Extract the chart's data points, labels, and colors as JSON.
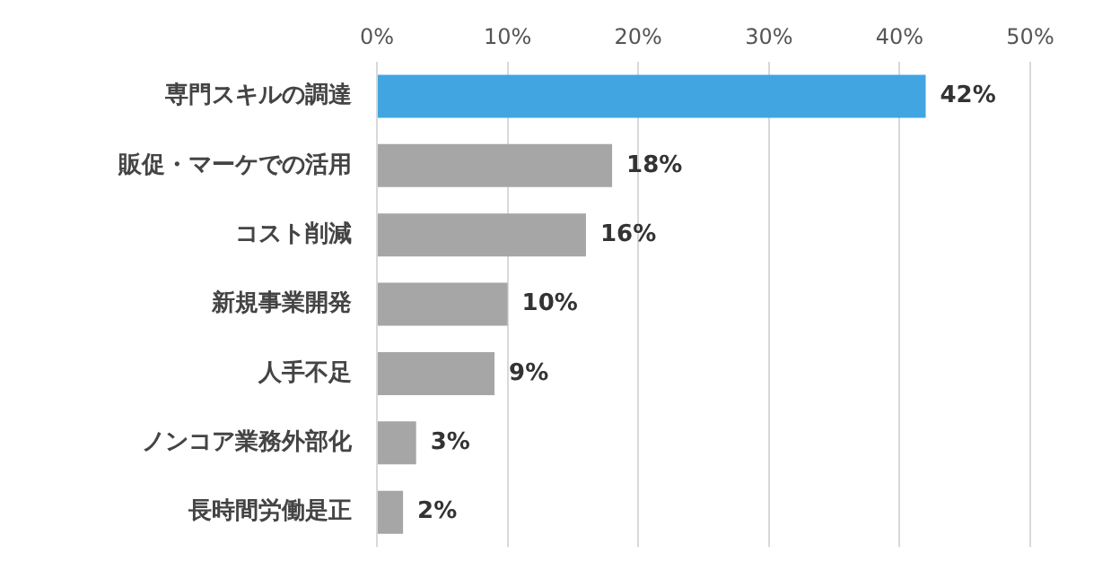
{
  "chart_data": {
    "type": "bar",
    "orientation": "horizontal",
    "categories": [
      "専門スキルの調達",
      "販促・マーケでの活用",
      "コスト削減",
      "新規事業開発",
      "人手不足",
      "ノンコア業務外部化",
      "長時間労働是正"
    ],
    "values": [
      42,
      18,
      16,
      10,
      9,
      3,
      2
    ],
    "colors": [
      "#41a5e1",
      "#a6a6a6",
      "#a6a6a6",
      "#a6a6a6",
      "#a6a6a6",
      "#a6a6a6",
      "#a6a6a6"
    ],
    "value_labels": [
      "42%",
      "18%",
      "16%",
      "10%",
      "9%",
      "3%",
      "2%"
    ],
    "xlim": [
      0,
      50
    ],
    "xticks": [
      {
        "value": 0,
        "label": "0%"
      },
      {
        "value": 10,
        "label": "10%"
      },
      {
        "value": 20,
        "label": "20%"
      },
      {
        "value": 30,
        "label": "30%"
      },
      {
        "value": 40,
        "label": "40%"
      },
      {
        "value": 50,
        "label": "50%"
      }
    ],
    "grid": "x",
    "legend": false
  }
}
